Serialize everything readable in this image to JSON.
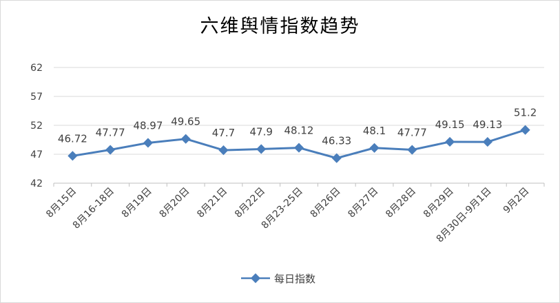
{
  "chart_data": {
    "type": "line",
    "title": "六维舆情指数趋势",
    "xlabel": "",
    "ylabel": "",
    "categories": [
      "8月15日",
      "8月16-18日",
      "8月19日",
      "8月20日",
      "8月21日",
      "8月22日",
      "8月23-25日",
      "8月26日",
      "8月27日",
      "8月28日",
      "8月29日",
      "8月30日-9月1日",
      "9月2日"
    ],
    "series": [
      {
        "name": "每日指数",
        "values": [
          46.72,
          47.77,
          48.97,
          49.65,
          47.7,
          47.9,
          48.12,
          46.33,
          48.1,
          47.77,
          49.15,
          49.13,
          51.2
        ],
        "labels": [
          "46.72",
          "47.77",
          "48.97",
          "49.65",
          "47.7",
          "47.9",
          "48.12",
          "46.33",
          "48.1",
          "47.77",
          "49.15",
          "49.13",
          "51.2"
        ],
        "color": "#4a7ebb"
      }
    ],
    "ylim": [
      42,
      62
    ],
    "yticks": [
      "42",
      "47",
      "52",
      "57",
      "62"
    ],
    "grid": true,
    "legend_position": "bottom"
  }
}
